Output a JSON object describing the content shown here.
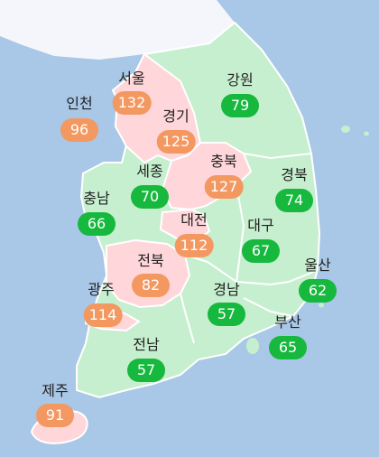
{
  "colors": {
    "sea": "#a9c7e6",
    "north": "#f4f6fb",
    "good": "#c6efcf",
    "moderate": "#ffd6da",
    "border": "#ffffff",
    "badge_good": "#17b83e",
    "badge_moderate": "#f39860"
  },
  "regions": [
    {
      "id": "seoul",
      "name": "서울",
      "value": "132",
      "level": "moderate"
    },
    {
      "id": "incheon",
      "name": "인천",
      "value": "96",
      "level": "moderate"
    },
    {
      "id": "gyeonggi",
      "name": "경기",
      "value": "125",
      "level": "moderate"
    },
    {
      "id": "gangwon",
      "name": "강원",
      "value": "79",
      "level": "good"
    },
    {
      "id": "chungbuk",
      "name": "충북",
      "value": "127",
      "level": "moderate"
    },
    {
      "id": "sejong",
      "name": "세종",
      "value": "70",
      "level": "good"
    },
    {
      "id": "chungnam",
      "name": "충남",
      "value": "66",
      "level": "good"
    },
    {
      "id": "daejeon",
      "name": "대전",
      "value": "112",
      "level": "moderate"
    },
    {
      "id": "gyeongbuk",
      "name": "경북",
      "value": "74",
      "level": "good"
    },
    {
      "id": "daegu",
      "name": "대구",
      "value": "67",
      "level": "good"
    },
    {
      "id": "jeonbuk",
      "name": "전북",
      "value": "82",
      "level": "moderate"
    },
    {
      "id": "ulsan",
      "name": "울산",
      "value": "62",
      "level": "good"
    },
    {
      "id": "gwangju",
      "name": "광주",
      "value": "114",
      "level": "moderate"
    },
    {
      "id": "gyeongnam",
      "name": "경남",
      "value": "57",
      "level": "good"
    },
    {
      "id": "busan",
      "name": "부산",
      "value": "65",
      "level": "good"
    },
    {
      "id": "jeonnam",
      "name": "전남",
      "value": "57",
      "level": "good"
    },
    {
      "id": "jeju",
      "name": "제주",
      "value": "91",
      "level": "moderate"
    }
  ]
}
